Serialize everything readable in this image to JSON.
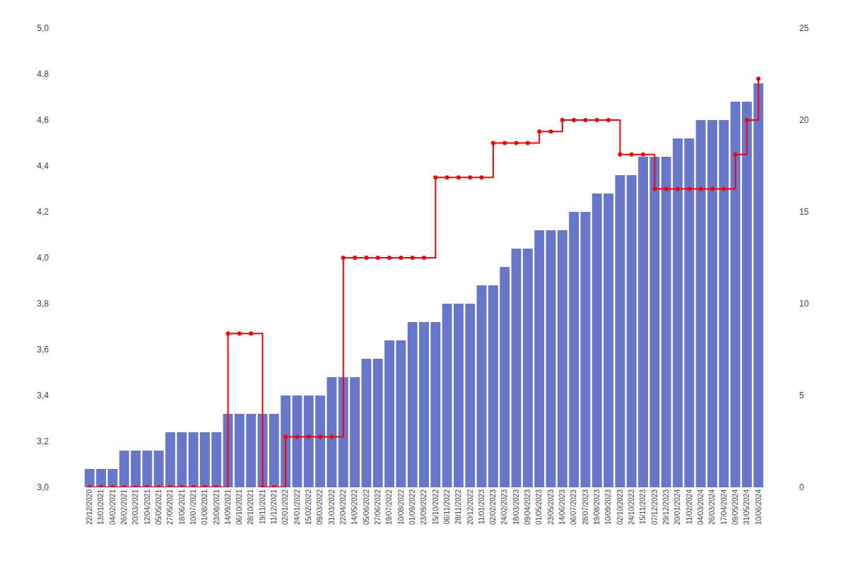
{
  "chart_data": {
    "type": "bar",
    "categories": [
      "22/12/2020",
      "13/01/2021",
      "04/02/2021",
      "26/02/2021",
      "20/03/2021",
      "12/04/2021",
      "05/05/2021",
      "27/05/2021",
      "18/06/2021",
      "10/07/2021",
      "01/08/2021",
      "23/08/2021",
      "14/09/2021",
      "06/10/2021",
      "28/10/2021",
      "19/11/2021",
      "11/12/2021",
      "02/01/2022",
      "24/01/2022",
      "15/02/2022",
      "09/03/2022",
      "31/03/2022",
      "22/04/2022",
      "14/05/2022",
      "05/06/2022",
      "27/06/2022",
      "19/07/2022",
      "10/08/2022",
      "01/09/2022",
      "23/09/2022",
      "15/10/2022",
      "06/11/2022",
      "28/11/2022",
      "20/12/2022",
      "11/01/2023",
      "02/02/2023",
      "24/02/2023",
      "18/03/2023",
      "09/04/2023",
      "01/05/2023",
      "23/05/2023",
      "14/06/2023",
      "06/07/2023",
      "28/07/2023",
      "19/08/2023",
      "10/09/2023",
      "02/10/2023",
      "24/10/2023",
      "15/11/2023",
      "07/12/2023",
      "29/12/2023",
      "20/01/2024",
      "11/02/2024",
      "04/03/2024",
      "26/03/2024",
      "17/04/2024",
      "09/05/2024",
      "31/05/2024",
      "10/06/2024"
    ],
    "series": [
      {
        "type": "bar",
        "color": "#6677cc",
        "axis": "y2",
        "values": [
          1,
          1,
          1,
          2,
          2,
          2,
          2,
          3,
          3,
          3,
          3,
          3,
          4,
          4,
          4,
          4,
          4,
          5,
          5,
          5,
          5,
          6,
          6,
          6,
          7,
          7,
          8,
          8,
          9,
          9,
          9,
          10,
          10,
          10,
          11,
          11,
          12,
          13,
          13,
          14,
          14,
          14,
          15,
          15,
          16,
          16,
          17,
          17,
          18,
          18,
          18,
          19,
          19,
          20,
          20,
          20,
          21,
          21,
          22
        ]
      },
      {
        "type": "line",
        "line_style": "step",
        "marker": "circle",
        "color": "#ff0000",
        "values": [
          3.0,
          3.0,
          3.0,
          3.0,
          3.0,
          3.0,
          3.0,
          3.0,
          3.0,
          3.0,
          3.0,
          3.0,
          3.67,
          3.67,
          3.67,
          3.0,
          3.0,
          3.22,
          3.22,
          3.22,
          3.22,
          3.22,
          4.0,
          4.0,
          4.0,
          4.0,
          4.0,
          4.0,
          4.0,
          4.0,
          4.35,
          4.35,
          4.35,
          4.35,
          4.35,
          4.5,
          4.5,
          4.5,
          4.5,
          4.55,
          4.55,
          4.6,
          4.6,
          4.6,
          4.6,
          4.6,
          4.45,
          4.45,
          4.45,
          4.3,
          4.3,
          4.3,
          4.3,
          4.3,
          4.3,
          4.3,
          4.45,
          4.6,
          4.78
        ]
      }
    ],
    "ylim": [
      3.0,
      5.0
    ],
    "yticks": [
      {
        "value": 3.0,
        "label": "3,0"
      },
      {
        "value": 3.2,
        "label": "3,2"
      },
      {
        "value": 3.4,
        "label": "3,4"
      },
      {
        "value": 3.6,
        "label": "3,6"
      },
      {
        "value": 3.8,
        "label": "3,8"
      },
      {
        "value": 4.0,
        "label": "4,0"
      },
      {
        "value": 4.2,
        "label": "4,2"
      },
      {
        "value": 4.4,
        "label": "4,4"
      },
      {
        "value": 4.6,
        "label": "4,6"
      },
      {
        "value": 4.8,
        "label": "4,8"
      },
      {
        "value": 5.0,
        "label": "5,0"
      }
    ],
    "y2lim": [
      0,
      25
    ],
    "y2ticks": [
      0,
      5,
      10,
      15,
      20,
      25
    ],
    "grid": false
  }
}
